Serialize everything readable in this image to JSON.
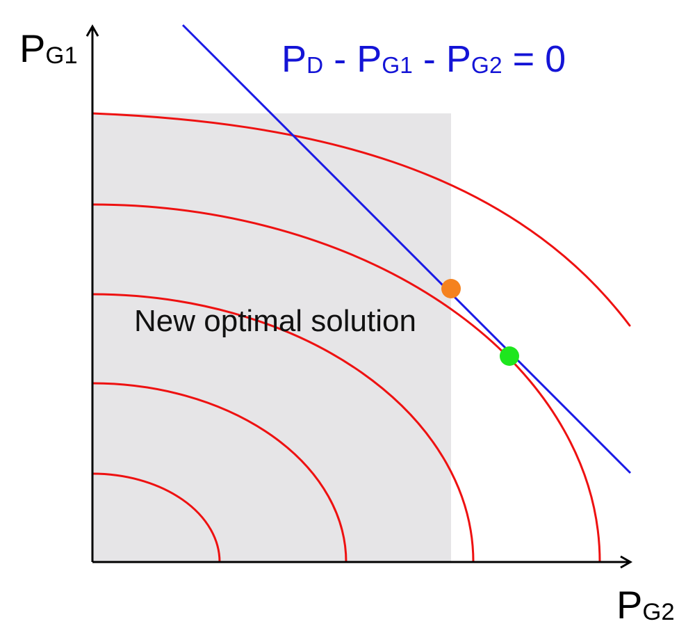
{
  "diagram": {
    "y_axis_label": {
      "base": "P",
      "sub": "G1"
    },
    "x_axis_label": {
      "base": "P",
      "sub": "G2"
    },
    "constraint": {
      "p1": "P",
      "p1_sub": "D",
      "op1": " - ",
      "p2": "P",
      "p2_sub": "G1",
      "op2": " - ",
      "p3": "P",
      "p3_sub": "G2",
      "rhs": " = 0",
      "color": "#1a1ae6"
    },
    "annotation": "New optimal solution",
    "colors": {
      "contours": "#ee1111",
      "feasible_region": "#e6e5e7",
      "new_optimum_point": "#f5821f",
      "old_optimum_point": "#1ee61e",
      "axes": "#000000"
    }
  }
}
